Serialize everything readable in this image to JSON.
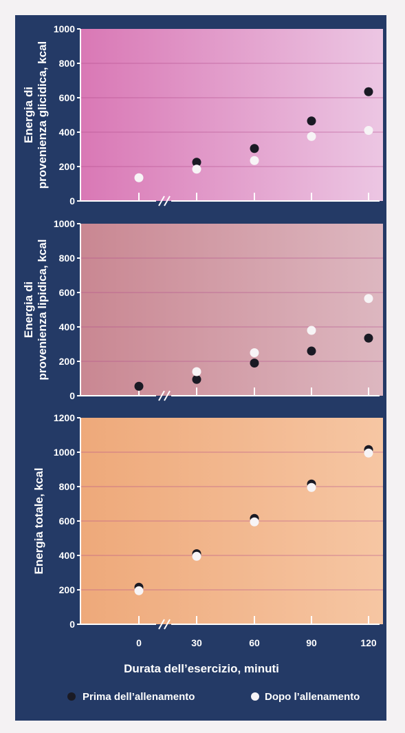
{
  "chart_data": {
    "type": "scatter",
    "xlabel": "Durata dell’esercizio, minuti",
    "x_ticks": [
      "0",
      "30",
      "60",
      "90",
      "120"
    ],
    "x": [
      0,
      30,
      60,
      90,
      120
    ],
    "legend": {
      "placement": "bottom",
      "items": [
        {
          "label": "Prima dell’allenamento",
          "color": "#1a1a24"
        },
        {
          "label": "Dopo l’allenamento",
          "color": "#f7f4f6"
        }
      ]
    },
    "panels": [
      {
        "ylabel_line1": "Energia di",
        "ylabel_line2": "provenienza glicidica, kcal",
        "ylim": [
          0,
          1000
        ],
        "y_ticks": [
          0,
          200,
          400,
          600,
          800,
          1000
        ],
        "grid": true,
        "series": [
          {
            "name": "Prima dell’allenamento",
            "values": [
              null,
              225,
              305,
              465,
              635
            ]
          },
          {
            "name": "Dopo l’allenamento",
            "values": [
              135,
              185,
              235,
              375,
              410
            ]
          }
        ]
      },
      {
        "ylabel_line1": "Energia di",
        "ylabel_line2": "provenienza lipidica, kcal",
        "ylim": [
          0,
          1000
        ],
        "y_ticks": [
          0,
          200,
          400,
          600,
          800,
          1000
        ],
        "grid": true,
        "series": [
          {
            "name": "Prima dell’allenamento",
            "values": [
              55,
              95,
              190,
              260,
              335
            ]
          },
          {
            "name": "Dopo l’allenamento",
            "values": [
              null,
              140,
              250,
              380,
              565
            ]
          }
        ]
      },
      {
        "ylabel_line1": "Energia totale, kcal",
        "ylabel_line2": "",
        "ylim": [
          0,
          1200
        ],
        "y_ticks": [
          0,
          200,
          400,
          600,
          800,
          1000,
          1200
        ],
        "grid": true,
        "series": [
          {
            "name": "Prima dell’allenamento",
            "values": [
              215,
              410,
              615,
              815,
              1015
            ]
          },
          {
            "name": "Dopo l’allenamento",
            "values": [
              195,
              395,
              595,
              795,
              995
            ]
          }
        ]
      }
    ]
  },
  "colors": {
    "frame": "#243a66",
    "panel1_left": "#d978b5",
    "panel1_right": "#ecc6e3",
    "panel2_left": "#c98792",
    "panel2_right": "#ddb7c0",
    "panel3_left": "#eea97a",
    "panel3_right": "#f6c6a3",
    "grid": "#b04a8a",
    "axis": "#ffffff"
  }
}
